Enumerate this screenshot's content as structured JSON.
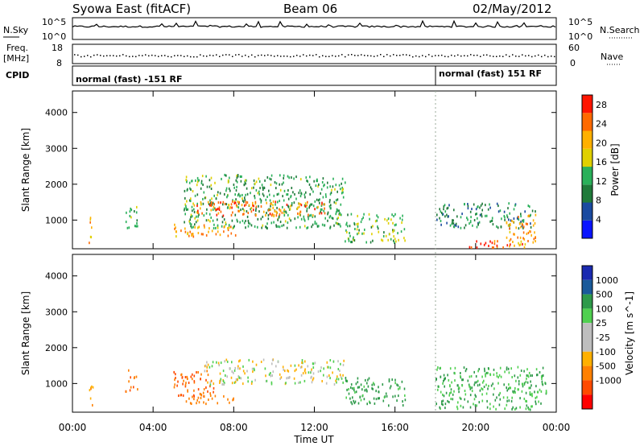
{
  "header": {
    "station": "Syowa East (fitACF)",
    "beam": "Beam 06",
    "date": "02/May/2012"
  },
  "params": {
    "nsky_label": "N.Sky",
    "nsky_ticks": [
      "10^5",
      "10^0"
    ],
    "nsearch_label": "N.Search",
    "freq_label_1": "Freq.",
    "freq_label_2": "[MHz]",
    "freq_ticks": [
      "18",
      "8"
    ],
    "nave_label": "Nave",
    "nave_ticks": [
      "60",
      "0"
    ],
    "cpid_label": "CPID",
    "cpid_segments": [
      "normal (fast) -151 RF",
      "normal (fast) 151 RF"
    ]
  },
  "colors": {
    "power_scale": [
      "#0a14ff",
      "#1a4aa0",
      "#1f7a3a",
      "#2ab05a",
      "#e0d000",
      "#ffb000",
      "#ff6a00",
      "#ff1500"
    ],
    "velocity_scale": [
      "#ff0000",
      "#ff4a00",
      "#ff8000",
      "#ffb000",
      "#bebebe",
      "#bebebe",
      "#50d050",
      "#2e9a4a",
      "#1a5a9a",
      "#1a2ab0"
    ]
  },
  "chart_data": [
    {
      "type": "heatmap",
      "panel": "power",
      "xlabel": "",
      "ylabel": "Slant Range [km]",
      "yticks": [
        "1000",
        "2000",
        "3000",
        "4000"
      ],
      "ylim": [
        200,
        4600
      ],
      "xlim_hours": [
        0,
        24
      ],
      "colorbar": {
        "label": "Power [dB]",
        "ticks": [
          "4",
          "8",
          "12",
          "16",
          "20",
          "24",
          "28"
        ],
        "range": [
          0,
          30
        ]
      },
      "echo_regions": [
        {
          "t_start": 0.8,
          "t_end": 1.0,
          "r_min": 300,
          "r_max": 1200,
          "value": 20
        },
        {
          "t_start": 2.6,
          "t_end": 3.2,
          "r_min": 800,
          "r_max": 1400,
          "value": 12
        },
        {
          "t_start": 5.0,
          "t_end": 8.2,
          "r_min": 550,
          "r_max": 900,
          "value": 22
        },
        {
          "t_start": 5.5,
          "t_end": 13.5,
          "r_min": 800,
          "r_max": 2300,
          "value": 12
        },
        {
          "t_start": 6.0,
          "t_end": 12.5,
          "r_min": 1150,
          "r_max": 1550,
          "value": 24
        },
        {
          "t_start": 13.5,
          "t_end": 16.5,
          "r_min": 400,
          "r_max": 1200,
          "value": 14
        },
        {
          "t_start": 18.0,
          "t_end": 23.0,
          "r_min": 800,
          "r_max": 1500,
          "value": 10
        },
        {
          "t_start": 19.5,
          "t_end": 22.5,
          "r_min": 250,
          "r_max": 450,
          "value": 26
        },
        {
          "t_start": 21.5,
          "t_end": 23.0,
          "r_min": 300,
          "r_max": 1200,
          "value": 22
        }
      ]
    },
    {
      "type": "heatmap",
      "panel": "velocity",
      "xlabel": "Time UT",
      "ylabel": "Slant Range [km]",
      "yticks": [
        "1000",
        "2000",
        "3000",
        "4000"
      ],
      "xticks": [
        "00:00",
        "04:00",
        "08:00",
        "12:00",
        "16:00",
        "20:00",
        "00:00"
      ],
      "ylim": [
        200,
        4600
      ],
      "xlim_hours": [
        0,
        24
      ],
      "colorbar": {
        "label": "Velocity [m s^-1]",
        "ticks": [
          "1000",
          "500",
          "100",
          "25",
          "-25",
          "-100",
          "-500",
          "-1000"
        ]
      },
      "echo_regions": [
        {
          "t_start": 0.8,
          "t_end": 1.0,
          "r_min": 300,
          "r_max": 1100,
          "value": -100
        },
        {
          "t_start": 2.6,
          "t_end": 3.2,
          "r_min": 800,
          "r_max": 1400,
          "value": -500
        },
        {
          "t_start": 5.0,
          "t_end": 7.0,
          "r_min": 650,
          "r_max": 1400,
          "value": -500
        },
        {
          "t_start": 5.5,
          "t_end": 8.0,
          "r_min": 450,
          "r_max": 700,
          "value": -200
        },
        {
          "t_start": 6.5,
          "t_end": 13.5,
          "r_min": 1000,
          "r_max": 1700,
          "value": 0
        },
        {
          "t_start": 13.5,
          "t_end": 16.5,
          "r_min": 400,
          "r_max": 1200,
          "value": 150
        },
        {
          "t_start": 18.0,
          "t_end": 23.5,
          "r_min": 300,
          "r_max": 1500,
          "value": 100
        }
      ]
    }
  ]
}
